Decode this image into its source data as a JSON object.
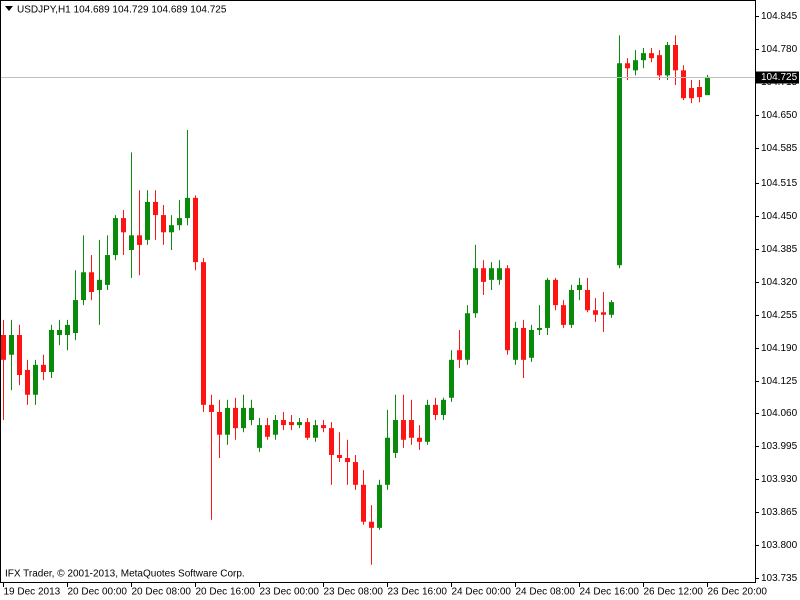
{
  "chart_data": {
    "type": "candlestick",
    "title": "USDJPY,H1  104.689 104.729 104.689 104.725",
    "watermark": "IFX Trader, © 2001-2013, MetaQuotes Software Corp.",
    "up_color": "#0a8a0a",
    "down_color": "#ff1414",
    "current_price": 104.725,
    "ylim": [
      103.727,
      104.873
    ],
    "yticks": [
      104.845,
      {
        "value": 104.78,
        "label": "104.780"
      },
      104.715,
      {
        "value": 104.65,
        "label": "104.650"
      },
      104.585,
      104.515,
      {
        "value": 104.45,
        "label": "104.450"
      },
      104.385,
      {
        "value": 104.32,
        "label": "104.320"
      },
      104.255,
      {
        "value": 104.19,
        "label": "104.190"
      },
      104.125,
      {
        "value": 104.06,
        "label": "104.060"
      },
      103.995,
      {
        "value": 103.93,
        "label": "103.930"
      },
      103.865,
      {
        "value": 103.8,
        "label": "103.800"
      },
      103.735
    ],
    "categories": [
      "19 Dec 2013",
      null,
      null,
      null,
      null,
      null,
      null,
      null,
      "20 Dec 00:00",
      null,
      null,
      null,
      null,
      null,
      null,
      null,
      "20 Dec 08:00",
      null,
      null,
      null,
      null,
      null,
      null,
      null,
      "20 Dec 16:00",
      null,
      null,
      null,
      null,
      null,
      null,
      null,
      "23 Dec 00:00",
      null,
      null,
      null,
      null,
      null,
      null,
      null,
      "23 Dec 08:00",
      null,
      null,
      null,
      null,
      null,
      null,
      null,
      "23 Dec 16:00",
      null,
      null,
      null,
      null,
      null,
      null,
      null,
      "24 Dec 00:00",
      null,
      null,
      null,
      null,
      null,
      null,
      null,
      "24 Dec 08:00",
      null,
      null,
      null,
      null,
      null,
      null,
      null,
      "24 Dec 16:00",
      null,
      null,
      null,
      null,
      null,
      null,
      null,
      "26 Dec 12:00",
      null,
      null,
      null,
      null,
      null,
      null,
      null,
      "26 Dec 20:00"
    ],
    "open": [
      104.215,
      104.176,
      104.215,
      104.146,
      104.097,
      104.156,
      104.142,
      104.215,
      104.215,
      104.219,
      104.284,
      104.339,
      104.304,
      104.314,
      104.373,
      104.446,
      104.383,
      104.412,
      104.403,
      104.478,
      104.452,
      104.418,
      104.432,
      104.446,
      104.486,
      104.359,
      104.077,
      104.063,
      104.018,
      104.071,
      104.031,
      104.047,
      103.992,
      104.037,
      104.018,
      104.047,
      104.043,
      104.037,
      104.043,
      104.012,
      104.037,
      104.031,
      103.978,
      103.972,
      103.964,
      103.919,
      103.846,
      103.834,
      103.919,
      103.982,
      104.047,
      104.047,
      104.012,
      104.004,
      104.077,
      104.057,
      104.091,
      104.185,
      104.166,
      104.258,
      104.347,
      104.324,
      104.324,
      104.347,
      104.166,
      104.229,
      104.17,
      104.225,
      104.229,
      104.324,
      104.274,
      104.235,
      104.304,
      104.304,
      104.264,
      104.26,
      104.255,
      104.353,
      104.752,
      104.738,
      104.758,
      104.772,
      104.768,
      104.728,
      104.788,
      104.738,
      104.703,
      104.705,
      104.689
    ],
    "high": [
      104.245,
      104.245,
      104.235,
      104.166,
      104.166,
      104.176,
      104.235,
      104.245,
      104.245,
      104.343,
      104.412,
      104.373,
      104.403,
      104.412,
      104.452,
      104.462,
      104.576,
      104.501,
      104.501,
      104.501,
      104.472,
      104.452,
      104.482,
      104.62,
      104.491,
      104.367,
      104.097,
      104.087,
      104.087,
      104.091,
      104.097,
      104.087,
      104.051,
      104.051,
      104.057,
      104.063,
      104.057,
      104.051,
      104.051,
      104.047,
      104.047,
      104.043,
      104.023,
      104.008,
      103.978,
      103.948,
      103.879,
      103.929,
      104.067,
      104.097,
      104.097,
      104.087,
      104.037,
      104.087,
      104.091,
      104.091,
      104.185,
      104.225,
      104.274,
      104.393,
      104.363,
      104.359,
      104.363,
      104.353,
      104.241,
      104.245,
      104.235,
      104.274,
      104.328,
      104.328,
      104.284,
      104.314,
      104.328,
      104.328,
      104.288,
      104.3,
      104.284,
      104.807,
      104.762,
      104.778,
      104.782,
      104.782,
      104.778,
      104.794,
      104.807,
      104.748,
      104.719,
      104.719,
      104.729
    ],
    "low": [
      104.047,
      104.106,
      104.116,
      104.077,
      104.077,
      104.126,
      104.13,
      104.195,
      104.185,
      104.205,
      104.274,
      104.284,
      104.235,
      104.304,
      104.363,
      104.373,
      104.328,
      104.333,
      104.393,
      104.403,
      104.393,
      104.383,
      104.422,
      104.432,
      104.343,
      104.063,
      103.85,
      103.972,
      103.998,
      104.008,
      104.023,
      104.037,
      103.984,
      104.008,
      104.008,
      104.027,
      104.027,
      104.031,
      104.008,
      104.004,
      104.023,
      103.919,
      103.964,
      103.919,
      103.909,
      103.84,
      103.761,
      103.83,
      103.909,
      103.972,
      103.992,
      103.998,
      103.988,
      103.998,
      104.047,
      104.047,
      104.083,
      104.15,
      104.156,
      104.249,
      104.294,
      104.304,
      104.314,
      104.176,
      104.156,
      104.13,
      104.162,
      104.215,
      104.215,
      104.264,
      104.229,
      104.229,
      104.284,
      104.26,
      104.241,
      104.221,
      104.249,
      104.347,
      104.719,
      104.728,
      104.742,
      104.754,
      104.719,
      104.719,
      104.709,
      104.679,
      104.673,
      104.675,
      104.689
    ],
    "close": [
      104.166,
      104.215,
      104.136,
      104.097,
      104.156,
      104.142,
      104.225,
      104.225,
      104.235,
      104.284,
      104.339,
      104.3,
      104.324,
      104.373,
      104.446,
      104.418,
      104.412,
      104.393,
      104.478,
      104.452,
      104.418,
      104.432,
      104.446,
      104.486,
      104.359,
      104.077,
      104.063,
      104.018,
      104.071,
      104.031,
      104.071,
      104.071,
      104.037,
      104.014,
      104.047,
      104.037,
      104.037,
      104.043,
      104.012,
      104.037,
      104.031,
      103.978,
      103.972,
      103.964,
      103.919,
      103.846,
      103.834,
      103.919,
      104.012,
      104.047,
      104.008,
      104.012,
      104.004,
      104.077,
      104.057,
      104.087,
      104.166,
      104.166,
      104.258,
      104.347,
      104.32,
      104.347,
      104.347,
      104.185,
      104.229,
      104.166,
      104.225,
      104.229,
      104.324,
      104.274,
      104.235,
      104.304,
      104.314,
      104.264,
      104.255,
      104.255,
      104.28,
      104.752,
      104.742,
      104.758,
      104.772,
      104.762,
      104.728,
      104.788,
      104.738,
      104.683,
      104.683,
      104.685,
      104.725
    ]
  }
}
